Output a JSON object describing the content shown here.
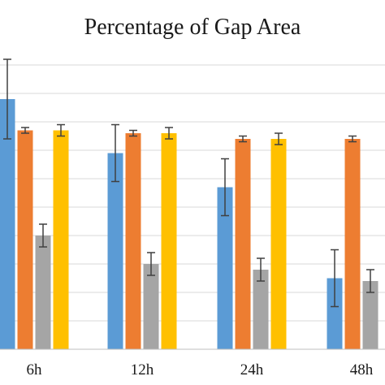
{
  "chart_data": {
    "type": "bar",
    "title": "Percentage of Gap Area",
    "categories": [
      "6h",
      "12h",
      "24h",
      "48h"
    ],
    "ylim": [
      0,
      100
    ],
    "grid": true,
    "legend": "none",
    "series": [
      {
        "color": "#5B9BD5",
        "values": [
          88,
          69,
          57,
          25
        ],
        "errors": [
          14,
          10,
          10,
          10
        ]
      },
      {
        "color": "#ED7D31",
        "values": [
          77,
          76,
          74,
          74
        ],
        "errors": [
          1,
          1,
          1,
          1
        ]
      },
      {
        "color": "#A5A5A5",
        "values": [
          40,
          30,
          28,
          24
        ],
        "errors": [
          4,
          4,
          4,
          4
        ]
      },
      {
        "color": "#FFC000",
        "values": [
          77,
          76,
          74,
          null
        ],
        "errors": [
          2,
          2,
          2,
          null
        ]
      }
    ]
  }
}
